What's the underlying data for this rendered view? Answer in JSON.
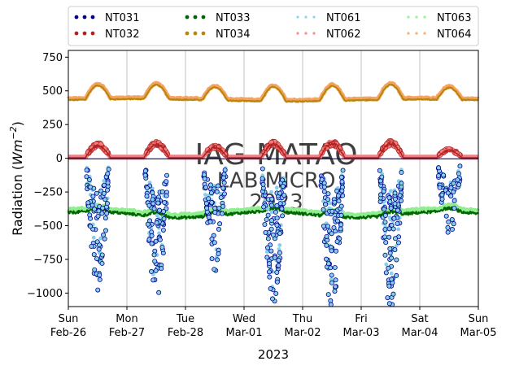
{
  "chart_data": {
    "type": "scatter",
    "title": "",
    "ylabel_main": "Radiation (",
    "ylabel_unit": "Wm",
    "ylabel_exp": "−2",
    "ylabel_close": ")",
    "xlabel": "2023",
    "ylim": [
      -1100,
      800
    ],
    "yticks": [
      {
        "value": 750,
        "label": "750"
      },
      {
        "value": 500,
        "label": "500"
      },
      {
        "value": 250,
        "label": "250"
      },
      {
        "value": 0,
        "label": "0"
      },
      {
        "value": -250,
        "label": "−250"
      },
      {
        "value": -500,
        "label": "−500"
      },
      {
        "value": -750,
        "label": "−750"
      },
      {
        "value": -1000,
        "label": "−1000"
      }
    ],
    "x_range": [
      "2023-02-26",
      "2023-03-05"
    ],
    "xticks": [
      {
        "day": "Sun",
        "date": "Feb-26"
      },
      {
        "day": "Mon",
        "date": "Feb-27"
      },
      {
        "day": "Tue",
        "date": "Feb-28"
      },
      {
        "day": "Wed",
        "date": "Mar-01"
      },
      {
        "day": "Thu",
        "date": "Mar-02"
      },
      {
        "day": "Fri",
        "date": "Mar-03"
      },
      {
        "day": "Sat",
        "date": "Mar-04"
      },
      {
        "day": "Sun",
        "date": "Mar-05"
      }
    ],
    "grid": "vertical",
    "legend_placement": "above plot",
    "watermark": [
      "IAG-MATAO",
      "LAB MICRO",
      "2023"
    ],
    "series": [
      {
        "name": "NT031",
        "color": "#00008b",
        "approx_values": {
          "night": -3,
          "day_min": -1080,
          "day_typical": -600
        }
      },
      {
        "name": "NT032",
        "color": "#b22222",
        "approx_values": {
          "night": 5,
          "day_peak": 125
        }
      },
      {
        "name": "NT033",
        "color": "#006400",
        "approx_values": {
          "baseline": -420,
          "range": [
            -455,
            -360
          ]
        }
      },
      {
        "name": "NT034",
        "color": "#b8860b",
        "approx_values": {
          "night": 430,
          "day_peak": 560
        }
      },
      {
        "name": "NT061",
        "color": "#87ceeb",
        "approx_values": {
          "night": -8,
          "day_min": -1000
        }
      },
      {
        "name": "NT062",
        "color": "#f08080",
        "approx_values": {
          "night": 10,
          "day_peak": 130
        }
      },
      {
        "name": "NT063",
        "color": "#90ee90",
        "approx_values": {
          "baseline": -410,
          "range": [
            -445,
            -355
          ]
        }
      },
      {
        "name": "NT064",
        "color": "#f4a460",
        "approx_values": {
          "night": 435,
          "day_peak": 565
        }
      }
    ],
    "daily_peak_factor": [
      0.85,
      0.92,
      0.72,
      0.95,
      0.98,
      1.0,
      0.5
    ]
  }
}
